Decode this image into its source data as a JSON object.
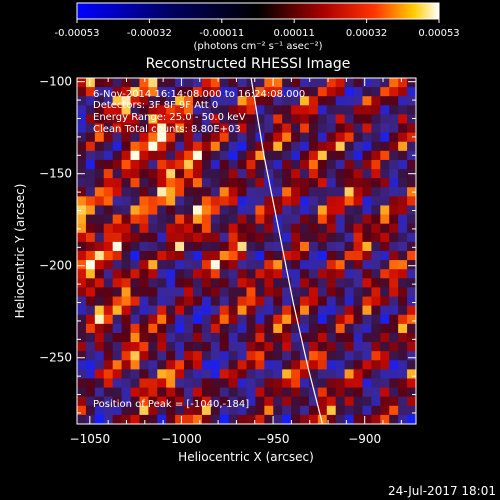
{
  "chart_data": {
    "type": "heatmap",
    "title": "Reconstructed RHESSI Image",
    "xlabel": "Heliocentric X (arcsec)",
    "ylabel": "Heliocentric Y (arcsec)",
    "xlim": [
      -1057,
      -872
    ],
    "ylim": [
      -286,
      -98
    ],
    "x_ticks": [
      -1050,
      -1000,
      -950,
      -900
    ],
    "y_ticks": [
      -100,
      -150,
      -200,
      -250
    ],
    "x_tick_labels": [
      "−1050",
      "−1000",
      "−950",
      "−900"
    ],
    "y_tick_labels": [
      "−100",
      "−150",
      "−200",
      "−250"
    ],
    "colorbar": {
      "min": -0.00053,
      "max": 0.00053,
      "colormap": [
        "#0000ff",
        "#000044",
        "#000000",
        "#660000",
        "#ff0000",
        "#ffaa00",
        "#ffffff"
      ],
      "tick_labels": [
        "-0.00053",
        "-0.00032",
        "-0.00011",
        "0.00011",
        "0.00032",
        "0.00053"
      ],
      "units": "(photons cm⁻² s⁻¹ asec⁻²)"
    },
    "annotations": {
      "time_range": "6-Nov-2014 16:14:08.000 to 16:24:08.000",
      "detectors": "Detectors: 3F 8F 9F  Att 0",
      "energy_range": "Energy Range: 25.0 - 50.0 keV",
      "clean_counts": "Clean    Total counts: 8.80E+03",
      "peak_position": "Position of Peak = [-1040,-184]"
    },
    "limb_curve": {
      "x": [
        -962,
        -955,
        -947,
        -939,
        -931,
        -923
      ],
      "y": [
        -98,
        -140,
        -180,
        -220,
        -255,
        -286
      ]
    },
    "image_grid": {
      "nx": 38,
      "ny": 38
    }
  },
  "footer": {
    "timestamp": "24-Jul-2017 18:01"
  }
}
